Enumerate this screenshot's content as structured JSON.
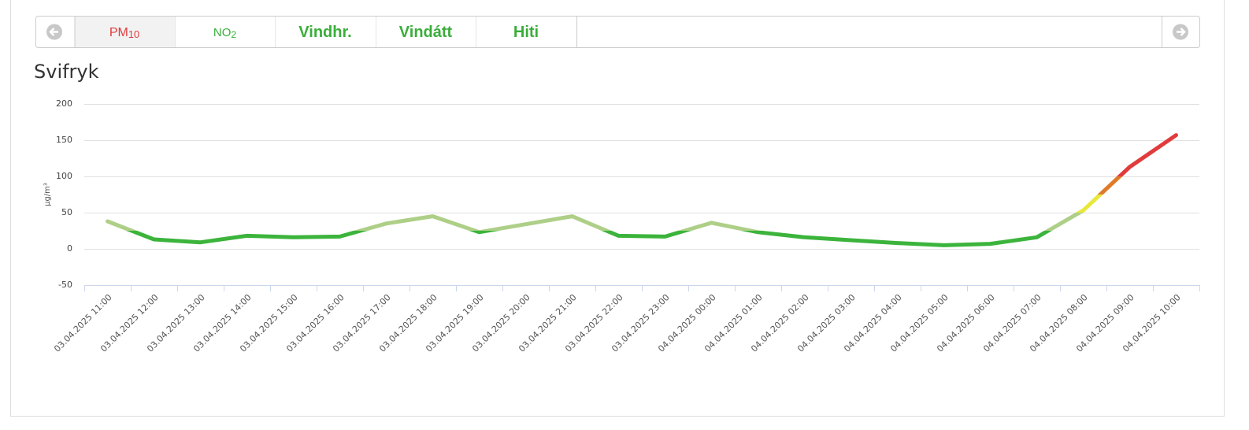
{
  "tabs": [
    {
      "label": "PM",
      "sub": "10",
      "color": "#e03c3c",
      "active": true,
      "size": 16,
      "bold": false
    },
    {
      "label": "NO",
      "sub": "2",
      "color": "#3aae3a",
      "active": false,
      "size": 15,
      "bold": false
    },
    {
      "label": "Vindhr.",
      "color": "#3aae3a",
      "active": false,
      "size": 20,
      "bold": true
    },
    {
      "label": "Vindátt",
      "color": "#3aae3a",
      "active": false,
      "size": 20,
      "bold": true
    },
    {
      "label": "Hiti",
      "color": "#3aae3a",
      "active": false,
      "size": 20,
      "bold": true
    }
  ],
  "chart_data": {
    "type": "line",
    "title": "Svifryk",
    "y_label": "µg/m³",
    "categories": [
      "03.04.2025 11:00",
      "03.04.2025 12:00",
      "03.04.2025 13:00",
      "03.04.2025 14:00",
      "03.04.2025 15:00",
      "03.04.2025 16:00",
      "03.04.2025 17:00",
      "03.04.2025 18:00",
      "03.04.2025 19:00",
      "03.04.2025 20:00",
      "03.04.2025 21:00",
      "03.04.2025 22:00",
      "03.04.2025 23:00",
      "04.04.2025 00:00",
      "04.04.2025 01:00",
      "04.04.2025 02:00",
      "04.04.2025 03:00",
      "04.04.2025 04:00",
      "04.04.2025 05:00",
      "04.04.2025 06:00",
      "04.04.2025 07:00",
      "04.04.2025 08:00",
      "04.04.2025 09:00",
      "04.04.2025 10:00"
    ],
    "values": [
      38,
      13,
      9,
      18,
      16,
      17,
      35,
      45,
      23,
      34,
      45,
      18,
      17,
      36,
      23,
      16,
      12,
      8,
      5,
      7,
      16,
      53,
      113,
      157
    ],
    "zones": [
      {
        "to": 25,
        "color": "#3cb43c"
      },
      {
        "to": 50,
        "color": "#aecf87"
      },
      {
        "to": 75,
        "color": "#e8e83c"
      },
      {
        "to": 100,
        "color": "#e07a28"
      },
      {
        "to": null,
        "color": "#e03c3c"
      }
    ],
    "ylim": [
      -50,
      200
    ],
    "yticks": [
      -50,
      0,
      50,
      100,
      150,
      200
    ],
    "grid": true
  }
}
